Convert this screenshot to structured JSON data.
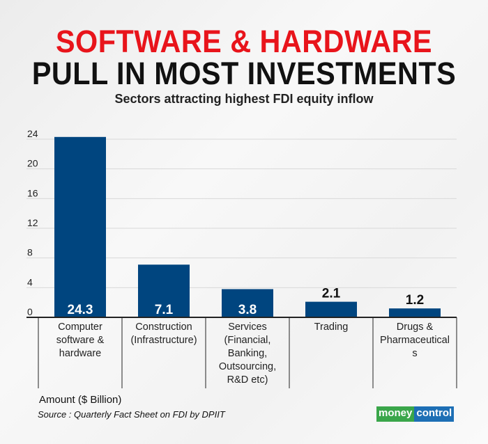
{
  "title_line1": "SOFTWARE & HARDWARE",
  "title_line2": "PULL IN MOST INVESTMENTS",
  "subtitle": "Sectors attracting highest FDI equity inflow",
  "chart_data": {
    "type": "bar",
    "title": "Sectors attracting highest FDI equity inflow",
    "categories": [
      [
        "Computer",
        "software &",
        "hardware"
      ],
      [
        "Construction",
        "(Infrastructure)"
      ],
      [
        "Services",
        "(Financial,",
        "Banking,",
        "Outsourcing,",
        "R&D etc)"
      ],
      [
        "Trading"
      ],
      [
        "Drugs &",
        "Pharmaceutical",
        "s"
      ]
    ],
    "values": [
      24.3,
      7.1,
      3.8,
      2.1,
      1.2
    ],
    "value_labels": [
      "24.3",
      "7.1",
      "3.8",
      "2.1",
      "1.2"
    ],
    "ylabel": "Amount ($ Billion)",
    "ylim": [
      0,
      24
    ],
    "yticks": [
      0,
      4,
      8,
      12,
      16,
      20,
      24
    ],
    "grid": true,
    "bar_color": "#00457f"
  },
  "source": "Source : Quarterly Fact Sheet on FDI by DPIIT",
  "logo": {
    "part1": "money",
    "part2": "control"
  }
}
